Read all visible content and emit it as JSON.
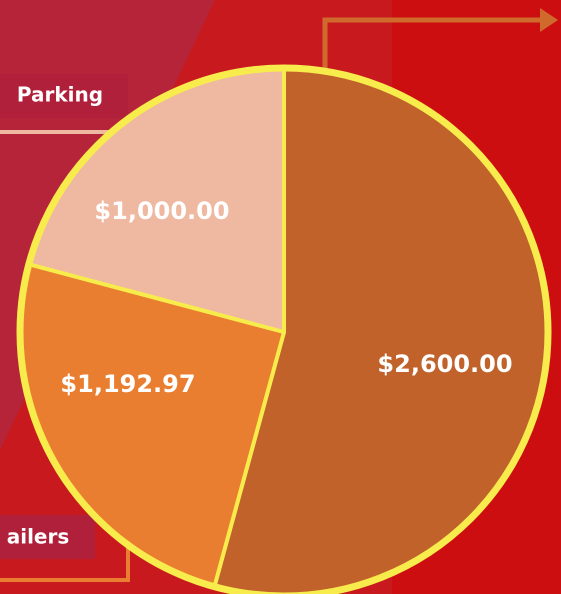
{
  "chart_data": {
    "type": "pie",
    "categories": [
      null,
      "ailers",
      "Parking"
    ],
    "values": [
      2600,
      1192.97,
      1000
    ],
    "value_labels": [
      "$2,600.00",
      "$1,192.97",
      "$1,000.00"
    ],
    "colors": [
      "#c0622a",
      "#ea7e30",
      "#efb8a0"
    ],
    "edge_color": "#f7ec4c"
  }
}
